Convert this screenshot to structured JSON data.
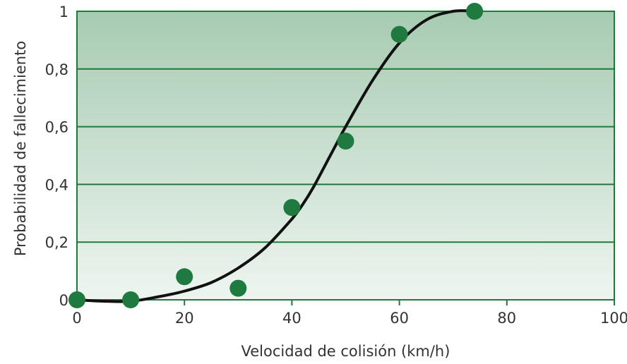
{
  "chart_data": {
    "type": "scatter",
    "title": "",
    "xlabel": "Velocidad de colisión (km/h)",
    "ylabel": "Probabilidad de fallecimiento",
    "xlim": [
      0,
      100
    ],
    "ylim": [
      0,
      1
    ],
    "x_ticks": [
      0,
      20,
      40,
      60,
      80,
      100
    ],
    "x_tick_labels": [
      "0",
      "20",
      "40",
      "60",
      "80",
      "100"
    ],
    "y_ticks": [
      0,
      0.2,
      0.4,
      0.6,
      0.8,
      1
    ],
    "y_tick_labels": [
      "0",
      "0,2",
      "0,4",
      "0,6",
      "0,8",
      "1"
    ],
    "grid": "horizontal",
    "legend": "none",
    "series": [
      {
        "type": "scatter",
        "x": [
          0,
          10,
          20,
          30,
          40,
          50,
          60,
          74
        ],
        "y": [
          0.0,
          0.0,
          0.08,
          0.04,
          0.32,
          0.55,
          0.92,
          1.0
        ]
      },
      {
        "type": "line",
        "x": [
          0,
          5,
          10,
          15,
          20,
          25,
          30,
          35,
          40,
          42,
          44,
          46,
          48,
          50,
          55,
          60,
          65,
          70,
          74
        ],
        "y": [
          0.0,
          -0.005,
          -0.005,
          0.01,
          0.03,
          0.06,
          0.11,
          0.18,
          0.28,
          0.33,
          0.39,
          0.46,
          0.53,
          0.6,
          0.76,
          0.89,
          0.97,
          1.0,
          1.0
        ]
      }
    ],
    "colors": {
      "background_top": "#A7CBB2",
      "background_bottom": "#EEF5F0",
      "grid": "#1E7A38",
      "frame": "#1E7A38",
      "marker": "#1F7A3F",
      "curve": "#111111"
    }
  }
}
